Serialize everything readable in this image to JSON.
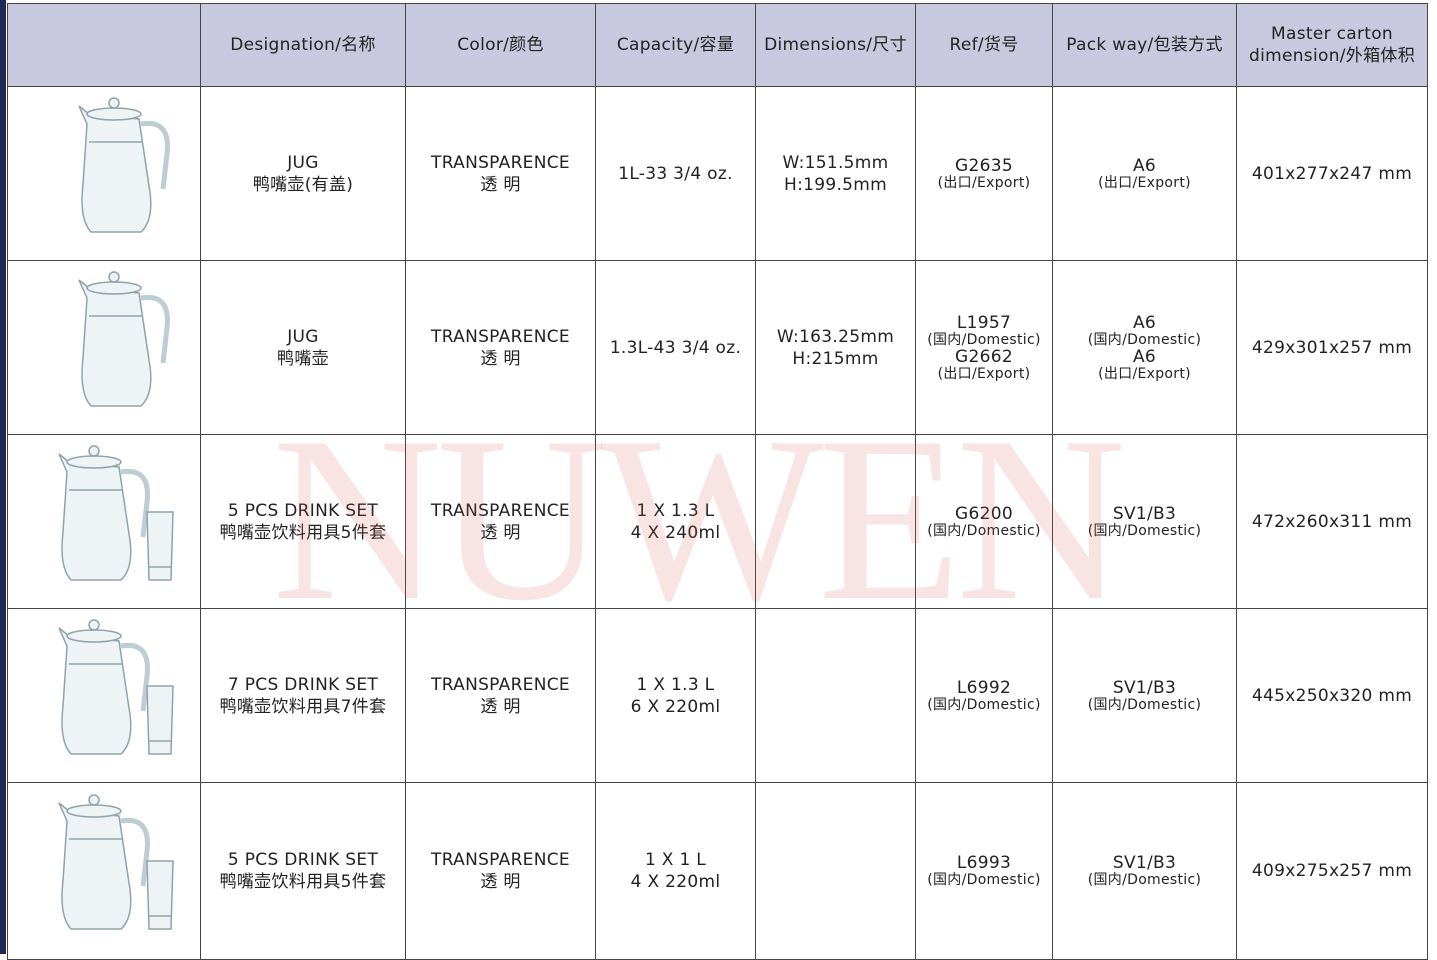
{
  "watermark": "NUWEN",
  "table": {
    "headers": [
      [
        "Designation/名称"
      ],
      [
        "Color/颜色"
      ],
      [
        "Capacity/容量"
      ],
      [
        "Dimensions/尺寸"
      ],
      [
        "Ref/货号"
      ],
      [
        "Pack way/包装方式"
      ],
      [
        "Master carton",
        "dimension/外箱体积"
      ]
    ],
    "rows": [
      {
        "designation": [
          "JUG",
          "鸭嘴壶(有盖)"
        ],
        "color": [
          "TRANSPARENCE",
          "透 明"
        ],
        "capacity": [
          "1L-33 3/4 oz."
        ],
        "dimensions": [
          "W:151.5mm",
          "H:199.5mm"
        ],
        "ref": [
          {
            "code": "G2635",
            "note": "(出口/Export)"
          }
        ],
        "pack": [
          {
            "code": "A6",
            "note": "(出口/Export)"
          }
        ],
        "carton": [
          "401x277x247 mm"
        ]
      },
      {
        "designation": [
          "JUG",
          "鸭嘴壶"
        ],
        "color": [
          "TRANSPARENCE",
          "透 明"
        ],
        "capacity": [
          "1.3L-43 3/4 oz."
        ],
        "dimensions": [
          "W:163.25mm",
          "H:215mm"
        ],
        "ref": [
          {
            "code": "L1957",
            "note": "(国内/Domestic)"
          },
          {
            "code": "G2662",
            "note": "(出口/Export)"
          }
        ],
        "pack": [
          {
            "code": "A6",
            "note": "(国内/Domestic)"
          },
          {
            "code": "A6",
            "note": "(出口/Export)"
          }
        ],
        "carton": [
          "429x301x257 mm"
        ]
      },
      {
        "designation": [
          "5 PCS DRINK SET",
          "鸭嘴壶饮料用具5件套"
        ],
        "color": [
          "TRANSPARENCE",
          "透 明"
        ],
        "capacity": [
          "1 X 1.3 L",
          "4 X 240ml"
        ],
        "dimensions": [],
        "ref": [
          {
            "code": "G6200",
            "note": "(国内/Domestic)"
          }
        ],
        "pack": [
          {
            "code": "SV1/B3",
            "note": "(国内/Domestic)"
          }
        ],
        "carton": [
          "472x260x311 mm"
        ]
      },
      {
        "designation": [
          "7 PCS DRINK SET",
          "鸭嘴壶饮料用具7件套"
        ],
        "color": [
          "TRANSPARENCE",
          "透 明"
        ],
        "capacity": [
          "1 X 1.3 L",
          "6 X 220ml"
        ],
        "dimensions": [],
        "ref": [
          {
            "code": "L6992",
            "note": "(国内/Domestic)"
          }
        ],
        "pack": [
          {
            "code": "SV1/B3",
            "note": "(国内/Domestic)"
          }
        ],
        "carton": [
          "445x250x320 mm"
        ]
      },
      {
        "designation": [
          "5 PCS DRINK SET",
          "鸭嘴壶饮料用具5件套"
        ],
        "color": [
          "TRANSPARENCE",
          "透 明"
        ],
        "capacity": [
          "1 X 1 L",
          "4 X 220ml"
        ],
        "dimensions": [],
        "ref": [
          {
            "code": "L6993",
            "note": "(国内/Domestic)"
          }
        ],
        "pack": [
          {
            "code": "SV1/B3",
            "note": "(国内/Domestic)"
          }
        ],
        "carton": [
          "409x275x257 mm"
        ]
      }
    ]
  }
}
